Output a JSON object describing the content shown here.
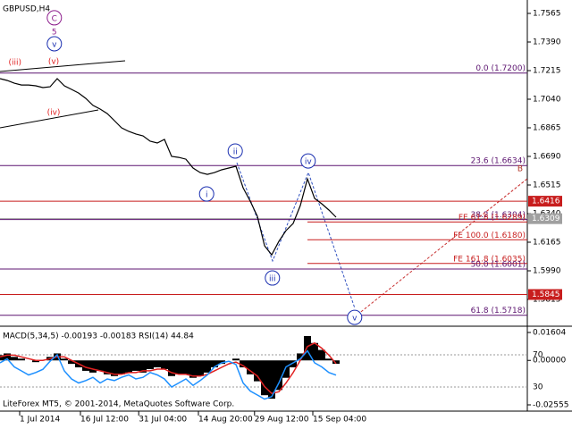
{
  "chart_data": [
    {
      "type": "line",
      "title": "GBPUSD,H4",
      "x": [
        0,
        1,
        2,
        3,
        4,
        5,
        6,
        7,
        8,
        9,
        10,
        11,
        12,
        13,
        14,
        15,
        16,
        17,
        18,
        19,
        20,
        21,
        22,
        23,
        24,
        25,
        26,
        27,
        28,
        29,
        30,
        31,
        32,
        33,
        34,
        35,
        36,
        37,
        38,
        39,
        40,
        41,
        42,
        43,
        44,
        45,
        46,
        47
      ],
      "xlim": [
        0,
        73.75
      ],
      "xticks": [
        {
          "value": 2.75,
          "label": "1 Jul 2014"
        },
        {
          "value": 11.25,
          "label": "16 Jul 12:00"
        },
        {
          "value": 19.4,
          "label": "31 Jul 04:00"
        },
        {
          "value": 27.75,
          "label": "14 Aug 20:00"
        },
        {
          "value": 35.6,
          "label": "29 Aug 12:00"
        },
        {
          "value": 43.75,
          "label": "15 Sep 04:00"
        }
      ],
      "ylim": [
        1.5651,
        1.7647
      ],
      "yticks": [
        1.7565,
        {
          "value": 1.739,
          "label": "1.7390"
        },
        1.7215,
        {
          "value": 1.704,
          "label": "1.7040"
        },
        1.6865,
        {
          "value": 1.669,
          "label": "1.6690"
        },
        1.6515,
        {
          "value": 1.634,
          "label": "1.6340"
        },
        1.6165,
        {
          "value": 1.599,
          "label": "1.5990"
        },
        1.5815
      ],
      "series": [
        {
          "color": "#000000",
          "values": [
            1.7166,
            1.7155,
            1.7138,
            1.7127,
            1.7127,
            1.7122,
            1.7111,
            1.7116,
            1.7166,
            1.7122,
            1.71,
            1.7078,
            1.7045,
            1.7002,
            1.698,
            1.6952,
            1.6909,
            1.6865,
            1.6843,
            1.6827,
            1.6816,
            1.6783,
            1.6772,
            1.6794,
            1.669,
            1.6684,
            1.6673,
            1.6619,
            1.6591,
            1.658,
            1.6591,
            1.6608,
            1.6619,
            1.663,
            1.6498,
            1.6416,
            1.6323,
            1.6143,
            1.6088,
            1.617,
            1.6236,
            1.628,
            1.6389,
            1.6553,
            1.6433,
            1.64,
            1.6362,
            1.6318
          ]
        }
      ],
      "levels": [
        {
          "value": 1.72,
          "text": "0.0 (1.7200)",
          "color": "#5c1470"
        },
        {
          "value": 1.6634,
          "text": "23.6 (1.6634)",
          "color": "#5c1470"
        },
        {
          "value": 1.6416,
          "color": "#c81e1e",
          "box": true
        },
        {
          "value": 1.6309,
          "color": "#a0a0a0",
          "box": true
        },
        {
          "value": 1.6304,
          "text": "38.2 (1.6304)",
          "color": "#5c1470"
        },
        {
          "value": 1.6289,
          "text": "FE 61.8 (1.6289)",
          "color": "#c81e1e",
          "start": 43
        },
        {
          "value": 1.618,
          "text": "FE 100.0 (1.6180)",
          "color": "#c81e1e",
          "start": 43
        },
        {
          "value": 1.6035,
          "text": "FE 161.8 (1.6035)",
          "color": "#c81e1e",
          "start": 43
        },
        {
          "value": 1.6001,
          "text": "50.0 (1.6001)",
          "color": "#5c1470"
        },
        {
          "value": 1.5845,
          "color": "#c81e1e",
          "box": true
        },
        {
          "value": 1.5718,
          "text": "61.8 (1.5718)",
          "color": "#5c1470"
        }
      ],
      "annotations": [
        {
          "text": "(iii)",
          "x": 2.1,
          "y": 1.727,
          "color": "#e02020"
        },
        {
          "text": "(v)",
          "x": 7.5,
          "y": 1.7275,
          "color": "#e02020"
        },
        {
          "text": "(iv)",
          "x": 7.5,
          "y": 1.6963,
          "color": "#e02020"
        },
        {
          "text": "C",
          "x": 7.6,
          "y": 1.7538,
          "color": "#8b1a8b",
          "circle": true
        },
        {
          "text": "5",
          "x": 7.6,
          "y": 1.7456,
          "color": "#8b1a8b"
        },
        {
          "text": "v",
          "x": 7.6,
          "y": 1.7379,
          "color": "#1a2fb0",
          "circle": true
        },
        {
          "text": "ii",
          "x": 32.9,
          "y": 1.6723,
          "color": "#1a2fb0",
          "circle": true
        },
        {
          "text": "i",
          "x": 28.9,
          "y": 1.646,
          "color": "#1a2fb0",
          "circle": true
        },
        {
          "text": "iii",
          "x": 38.1,
          "y": 1.5946,
          "color": "#1a2fb0",
          "circle": true
        },
        {
          "text": "iv",
          "x": 43.1,
          "y": 1.6662,
          "color": "#1a2fb0",
          "circle": true
        },
        {
          "text": "v",
          "x": 49.6,
          "y": 1.5705,
          "color": "#1a2fb0",
          "circle": true
        },
        {
          "text": "B",
          "x": 72.75,
          "y": 1.6619,
          "color": "#b03020"
        }
      ]
    },
    {
      "type": "macd",
      "title": "MACD(5,34,5) -0.00193 -0.00183 RSI(14) 44.84",
      "footer": "LiteForex MT5, © 2001-2014, MetaQuotes Software Corp.",
      "ylim": [
        -0.02914,
        0.01963
      ],
      "yticks": [
        0.01604,
        {
          "value": 0,
          "label": "0.00000"
        },
        -0.02555
      ],
      "y2lim": [
        0,
        105.6
      ],
      "y2ticks": [
        70,
        30
      ],
      "series": [
        {
          "kind": "bar",
          "color": "#000000",
          "values": [
            0.003,
            0.004,
            0.002,
            0.001,
            0.0,
            -0.001,
            0.0,
            0.002,
            0.004,
            0.001,
            -0.002,
            -0.004,
            -0.006,
            -0.007,
            -0.006,
            -0.008,
            -0.009,
            -0.008,
            -0.007,
            -0.006,
            -0.007,
            -0.005,
            -0.004,
            -0.005,
            -0.009,
            -0.008,
            -0.008,
            -0.01,
            -0.009,
            -0.007,
            -0.004,
            -0.002,
            0.0,
            0.001,
            -0.004,
            -0.008,
            -0.012,
            -0.02,
            -0.022,
            -0.017,
            -0.01,
            -0.004,
            0.004,
            0.014,
            0.01,
            0.006,
            0.001,
            -0.00193
          ]
        },
        {
          "kind": "line",
          "color": "#e02020",
          "values": [
            0.002,
            0.003,
            0.003,
            0.002,
            0.001,
            0.0,
            0.0,
            0.001,
            0.002,
            0.002,
            0.0,
            -0.002,
            -0.004,
            -0.005,
            -0.006,
            -0.007,
            -0.008,
            -0.008,
            -0.007,
            -0.007,
            -0.006,
            -0.006,
            -0.005,
            -0.005,
            -0.007,
            -0.008,
            -0.008,
            -0.009,
            -0.009,
            -0.008,
            -0.006,
            -0.004,
            -0.002,
            -0.001,
            -0.003,
            -0.006,
            -0.009,
            -0.015,
            -0.019,
            -0.018,
            -0.013,
            -0.007,
            0.0,
            0.008,
            0.01,
            0.007,
            0.003,
            -0.00183
          ]
        },
        {
          "kind": "line",
          "axis": "y2",
          "color": "#1e90ff",
          "values": [
            60,
            65,
            55,
            50,
            45,
            48,
            52,
            62,
            70,
            50,
            40,
            35,
            38,
            42,
            35,
            40,
            38,
            42,
            45,
            40,
            42,
            48,
            45,
            40,
            30,
            35,
            40,
            32,
            38,
            45,
            55,
            60,
            62,
            58,
            35,
            25,
            20,
            15,
            18,
            35,
            55,
            60,
            65,
            75,
            60,
            55,
            48,
            44.84
          ]
        }
      ]
    }
  ]
}
